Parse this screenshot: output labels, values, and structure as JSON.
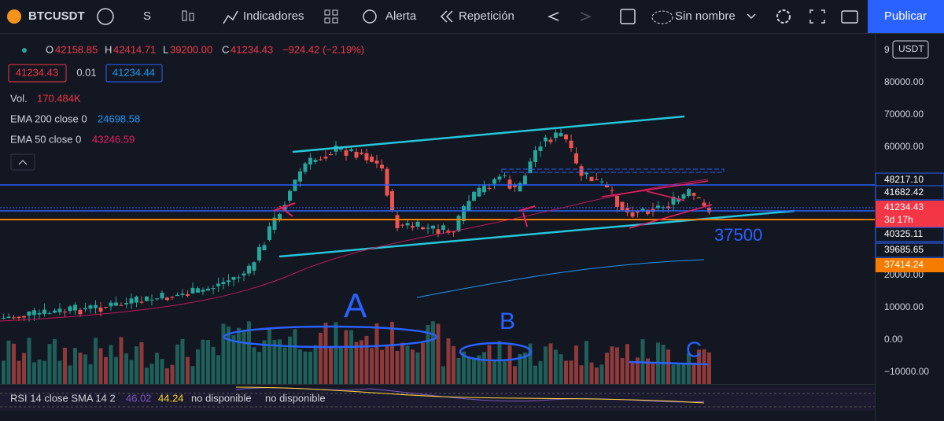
{
  "toolbar": {
    "symbol": "BTCUSDT",
    "interval": "S",
    "indicators": "Indicadores",
    "alert": "Alerta",
    "replay": "Repetición",
    "layout": "Sin nombre",
    "publish": "Publicar"
  },
  "legend": {
    "open_label": "O",
    "open": "42158.85",
    "high_label": "H",
    "high": "42414.71",
    "low_label": "L",
    "low": "39200.00",
    "close_label": "C",
    "close": "41234.43",
    "change": "−924.42 (−2.19%)",
    "bid": "41234.43",
    "spread": "0.01",
    "ask": "41234.44",
    "volume_label": "Vol.",
    "volume": "170.484K",
    "ema200_label": "EMA 200 close 0",
    "ema200": "24698.58",
    "ema50_label": "EMA 50 close 0",
    "ema50": "43246.59"
  },
  "rsi": {
    "label": "RSI 14 close SMA 14 2",
    "value": "46.02",
    "sma": "44.24",
    "na1": "no disponible",
    "na2": "no disponible"
  },
  "price_axis": {
    "scale_digit": "9",
    "currency": "USDT",
    "labels": [
      "80000.00",
      "70000.00",
      "60000.00",
      "20000.00",
      "10000.00",
      "0.00",
      "−10000.00"
    ],
    "tags": [
      "48217.10",
      "41682.42",
      "41234.43",
      "3d 17h",
      "40325.11",
      "39685.65",
      "37414.24"
    ]
  },
  "annotations": {
    "level": "37500",
    "a": "A",
    "b": "B",
    "c": "C"
  }
}
